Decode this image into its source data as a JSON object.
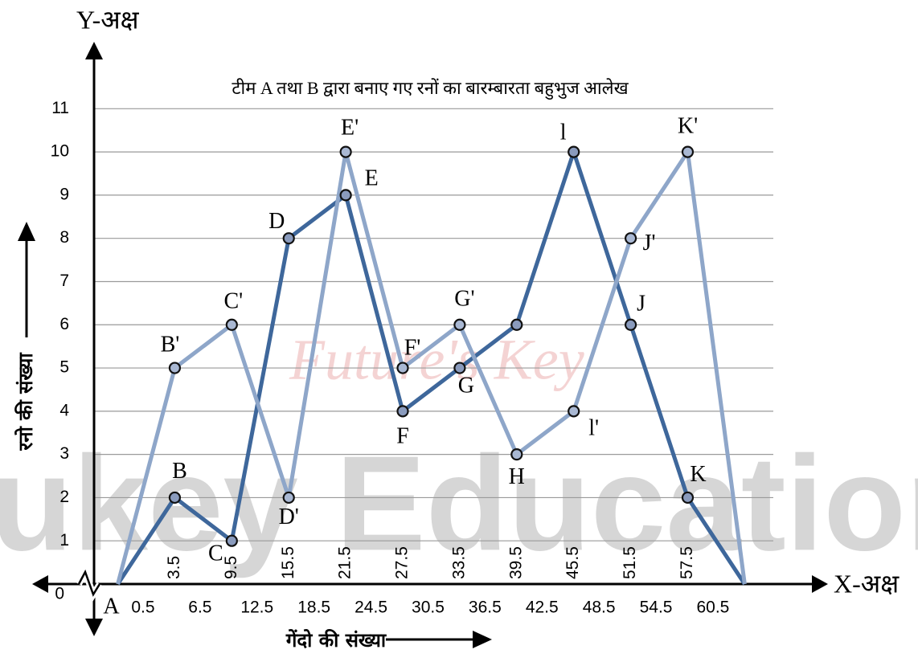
{
  "chart_data": {
    "type": "line",
    "title": "टीम A तथा B द्वारा बनाए गए रनों का बारम्बारता बहुभुज आलेख",
    "y_axis_name": "Y-अक्ष",
    "x_axis_name": "X-अक्ष",
    "xlabel": "गेंदो की संख्या",
    "ylabel": "रनो की संख्या",
    "watermarks": [
      "ukey Education",
      "Future's Key"
    ],
    "x": [
      -2.5,
      3.5,
      9.5,
      15.5,
      21.5,
      27.5,
      33.5,
      39.5,
      45.5,
      51.5,
      57.5,
      63.5
    ],
    "series": [
      {
        "color": "#3e679b",
        "values": [
          0,
          2,
          1,
          8,
          9,
          4,
          5,
          6,
          10,
          6,
          2,
          0
        ],
        "point_labels": [
          "A",
          "B",
          "C",
          "D",
          "E",
          "F",
          "G",
          null,
          "l",
          "J",
          "K",
          null
        ]
      },
      {
        "color": "#8ea6c9",
        "values": [
          0,
          5,
          6,
          2,
          10,
          5,
          6,
          3,
          4,
          8,
          10,
          0
        ],
        "point_labels": [
          null,
          "B'",
          "C'",
          "D'",
          "E'",
          "F'",
          "G'",
          "H",
          "l'",
          "J'",
          "K'",
          null
        ]
      }
    ],
    "xlim": [
      -5,
      71
    ],
    "ylim": [
      0,
      12.4
    ],
    "xticks": [
      0.5,
      3.5,
      6.5,
      9.5,
      12.5,
      15.5,
      18.5,
      21.5,
      24.5,
      27.5,
      30.5,
      33.5,
      36.5,
      39.5,
      42.5,
      45.5,
      48.5,
      51.5,
      54.5,
      57.5,
      60.5
    ],
    "yticks": [
      0,
      1,
      2,
      3,
      4,
      5,
      6,
      7,
      8,
      9,
      10,
      11
    ],
    "grid": true
  }
}
